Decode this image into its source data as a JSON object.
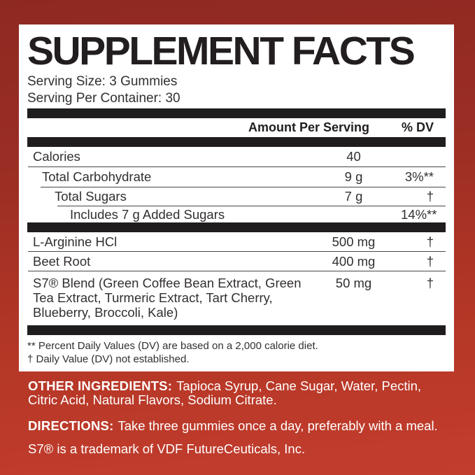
{
  "colors": {
    "background_top": "#8e2921",
    "background_bottom": "#c33d2e",
    "bar": "#201d1e",
    "panel": "#ffffff",
    "text": "#332f30",
    "bottom_text": "#ffffff"
  },
  "label": {
    "title": "SUPPLEMENT FACTS",
    "serving_size": "Serving Size: 3 Gummies",
    "servings_per_container": "Serving Per Container: 30",
    "columns": {
      "amount": "Amount Per Serving",
      "dv": "% DV"
    },
    "rows": [
      {
        "name": "Calories",
        "amount": "40",
        "dv": ""
      },
      {
        "name": "Total Carbohydrate",
        "amount": "9 g",
        "dv": "3%**"
      },
      {
        "name": "Total Sugars",
        "amount": "7 g",
        "dv": "†"
      },
      {
        "name": "Includes 7 g Added Sugars",
        "amount": "",
        "dv": "14%**"
      },
      {
        "name": "L-Arginine HCl",
        "amount": "500 mg",
        "dv": "†"
      },
      {
        "name": "Beet Root",
        "amount": "400 mg",
        "dv": "†"
      },
      {
        "name": "S7® Blend (Green Coffee Bean Extract, Green Tea Extract, Turmeric Extract, Tart Cherry, Blueberry, Broccoli, Kale)",
        "amount": "50 mg",
        "dv": "†"
      }
    ],
    "footnotes": [
      "** Percent Daily Values (DV) are based on a 2,000 calorie diet.",
      "† Daily Value (DV) not established."
    ]
  },
  "bottom": {
    "other_ingredients_label": "OTHER INGREDIENTS:",
    "other_ingredients": "Tapioca Syrup, Cane Sugar, Water, Pectin, Citric Acid, Natural Flavors, Sodium Citrate.",
    "directions_label": "DIRECTIONS:",
    "directions": "Take three gummies once a day, preferably with a meal.",
    "trademark": "S7® is a trademark of VDF FutureCeuticals, Inc."
  }
}
